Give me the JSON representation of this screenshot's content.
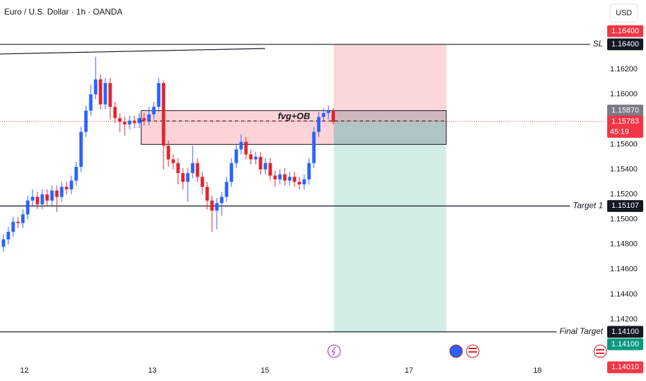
{
  "chart_data": {
    "type": "candlestick",
    "title": "Euro / U.S. Dollar · 1h · OANDA",
    "currency": "USD",
    "x": [
      0,
      1,
      2,
      3,
      4,
      5,
      6,
      7,
      8,
      9,
      10,
      11,
      12,
      13,
      14,
      15,
      16,
      17,
      18,
      19,
      20,
      21,
      22,
      23,
      24,
      25,
      26,
      27,
      28,
      29,
      30,
      31,
      32,
      33,
      34,
      35,
      36,
      37,
      38,
      39,
      40,
      41,
      42,
      43,
      44,
      45,
      46,
      47,
      48,
      49,
      50,
      51,
      52,
      53,
      54,
      55,
      56,
      57,
      58,
      59,
      60,
      61,
      62,
      63,
      64,
      65,
      66,
      67,
      68
    ],
    "open": [
      1.1478,
      1.1484,
      1.149,
      1.1498,
      1.1497,
      1.1504,
      1.1515,
      1.1518,
      1.1512,
      1.152,
      1.1515,
      1.1523,
      1.1518,
      1.1526,
      1.1524,
      1.1531,
      1.1542,
      1.157,
      1.1587,
      1.16,
      1.1612,
      1.1592,
      1.1609,
      1.159,
      1.1581,
      1.1578,
      1.1576,
      1.1579,
      1.1577,
      1.1581,
      1.1579,
      1.1584,
      1.159,
      1.1609,
      1.1559,
      1.1548,
      1.1545,
      1.1537,
      1.153,
      1.1537,
      1.1545,
      1.1534,
      1.1526,
      1.1515,
      1.1507,
      1.1513,
      1.1518,
      1.153,
      1.1545,
      1.1556,
      1.1562,
      1.1552,
      1.1548,
      1.155,
      1.154,
      1.1545,
      1.1535,
      1.1532,
      1.1536,
      1.1531,
      1.1534,
      1.153,
      1.1528,
      1.1532,
      1.1545,
      1.157,
      1.1582,
      1.1585,
      1.1587
    ],
    "high": [
      1.1488,
      1.1494,
      1.1502,
      1.1502,
      1.1508,
      1.1519,
      1.1524,
      1.1522,
      1.1524,
      1.1524,
      1.1527,
      1.1527,
      1.153,
      1.153,
      1.1535,
      1.1546,
      1.1574,
      1.1591,
      1.1608,
      1.163,
      1.1616,
      1.1613,
      1.1613,
      1.1594,
      1.1585,
      1.1582,
      1.1583,
      1.1583,
      1.1585,
      1.1585,
      1.159,
      1.1594,
      1.1613,
      1.1611,
      1.1563,
      1.1552,
      1.1549,
      1.1541,
      1.1541,
      1.1559,
      1.1549,
      1.1538,
      1.153,
      1.1519,
      1.1517,
      1.1522,
      1.1534,
      1.1549,
      1.156,
      1.1568,
      1.1566,
      1.1556,
      1.1554,
      1.1554,
      1.1549,
      1.1549,
      1.1539,
      1.154,
      1.1541,
      1.1538,
      1.1538,
      1.1534,
      1.1536,
      1.1549,
      1.1574,
      1.1586,
      1.1589,
      1.1591,
      1.1589
    ],
    "low": [
      1.1474,
      1.148,
      1.1486,
      1.1493,
      1.1493,
      1.15,
      1.1511,
      1.1508,
      1.1508,
      1.1511,
      1.1511,
      1.1506,
      1.1514,
      1.152,
      1.152,
      1.1527,
      1.1538,
      1.1566,
      1.1583,
      1.1596,
      1.1588,
      1.1588,
      1.158,
      1.1577,
      1.157,
      1.1567,
      1.1572,
      1.1573,
      1.1573,
      1.1575,
      1.1575,
      1.158,
      1.1586,
      1.154,
      1.1542,
      1.154,
      1.1528,
      1.1524,
      1.1514,
      1.1533,
      1.153,
      1.152,
      1.1508,
      1.149,
      1.1492,
      1.1503,
      1.1514,
      1.1526,
      1.1541,
      1.1552,
      1.1548,
      1.1544,
      1.1544,
      1.1536,
      1.1536,
      1.1531,
      1.1526,
      1.1528,
      1.1527,
      1.1527,
      1.1526,
      1.1524,
      1.1524,
      1.1528,
      1.1541,
      1.1566,
      1.1578,
      1.158,
      1.1576
    ],
    "close": [
      1.1484,
      1.149,
      1.1498,
      1.1497,
      1.1504,
      1.1515,
      1.1518,
      1.1512,
      1.152,
      1.1515,
      1.1523,
      1.1518,
      1.1526,
      1.1524,
      1.1531,
      1.1542,
      1.157,
      1.1587,
      1.16,
      1.1612,
      1.1592,
      1.1609,
      1.159,
      1.1581,
      1.1578,
      1.1576,
      1.1579,
      1.1577,
      1.1581,
      1.1579,
      1.1584,
      1.159,
      1.1609,
      1.1559,
      1.1548,
      1.1545,
      1.1537,
      1.153,
      1.1537,
      1.1545,
      1.1534,
      1.1526,
      1.1515,
      1.1507,
      1.1513,
      1.1518,
      1.153,
      1.1545,
      1.1556,
      1.1562,
      1.1552,
      1.1548,
      1.155,
      1.154,
      1.1545,
      1.1535,
      1.1532,
      1.1536,
      1.1531,
      1.1534,
      1.153,
      1.1528,
      1.1532,
      1.1545,
      1.157,
      1.1582,
      1.1585,
      1.1587,
      1.1578
    ],
    "up_color": "#2962ff",
    "down_color": "#e0242f",
    "xlim": [
      -0.714,
      123.9
    ],
    "xticks": [
      {
        "value": 4.3,
        "label": "12"
      },
      {
        "value": 30.7,
        "label": "13"
      },
      {
        "value": 53.9,
        "label": "15"
      },
      {
        "value": 83.6,
        "label": "17"
      },
      {
        "value": 110.1,
        "label": "18"
      }
    ],
    "ylim": [
      1.13884,
      1.16755
    ],
    "yticks": [
      {
        "value": 1.162,
        "label": "1.16200"
      },
      {
        "value": 1.16,
        "label": "1.16000"
      },
      {
        "value": 1.156,
        "label": "1.15600"
      },
      {
        "value": 1.154,
        "label": "1.15400"
      },
      {
        "value": 1.152,
        "label": "1.15200"
      },
      {
        "value": 1.15,
        "label": "1.15000"
      },
      {
        "value": 1.148,
        "label": "1.14800"
      },
      {
        "value": 1.146,
        "label": "1.14600"
      },
      {
        "value": 1.144,
        "label": "1.14400"
      },
      {
        "value": 1.142,
        "label": "1.14200"
      }
    ],
    "zones": [
      {
        "x": [
          68.1,
          91.3
        ],
        "y": [
          1.164,
          1.15787
        ],
        "color": "rgba(242,54,69,0.2)"
      },
      {
        "x": [
          68.1,
          91.3
        ],
        "y": [
          1.15787,
          1.141
        ],
        "color": "rgba(8,153,129,0.18)"
      },
      {
        "x": [
          28.4,
          68.1
        ],
        "y": [
          1.1587,
          1.156
        ],
        "color": "rgba(242,54,69,0.22)"
      },
      {
        "x": [
          68.1,
          91.3
        ],
        "y": [
          1.1587,
          1.156
        ],
        "color": "rgba(120,123,134,0.35)"
      }
    ],
    "fvg_box": {
      "x": [
        28.4,
        91.3
      ],
      "y": [
        1.1587,
        1.156
      ]
    },
    "entry_line": {
      "x": [
        28.4,
        91.3
      ],
      "value": 1.15787
    },
    "annotation": {
      "text": "fvg+OB",
      "x": 59.9,
      "y": 1.1582
    },
    "trendline": {
      "x": [
        -0.714,
        53.9
      ],
      "y": [
        1.16323,
        1.16367
      ]
    },
    "current_price": 1.15783,
    "lines": [
      {
        "name": "SL",
        "value": 1.164
      },
      {
        "name": "Target 1",
        "value": 1.15107
      },
      {
        "name": "Final Target",
        "value": 1.141
      }
    ],
    "price_labels": [
      {
        "value": 1.164,
        "label": "1.16400",
        "color": "#f23645"
      },
      {
        "value": 1.164,
        "label": "1.16400",
        "color": "#131722"
      },
      {
        "value": 1.1587,
        "label": "1.15870",
        "color": "#787b86"
      },
      {
        "value": 1.15783,
        "label": "1.15783",
        "sub": "45:19",
        "color": "#f23645"
      },
      {
        "value": 1.15107,
        "label": "1.15107",
        "color": "#131722"
      },
      {
        "value": 1.141,
        "label": "1.14100",
        "color": "#131722"
      },
      {
        "value": 1.141,
        "label": "1.14100",
        "color": "#089981"
      },
      {
        "value": 1.1401,
        "label": "1.14010",
        "color": "#f23645"
      }
    ]
  }
}
